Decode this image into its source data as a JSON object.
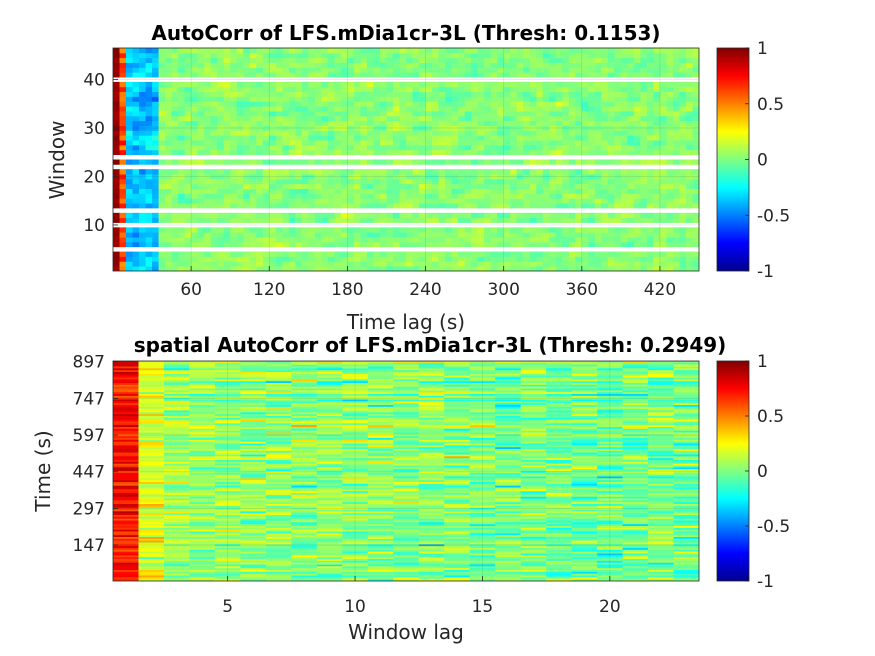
{
  "chart_data": [
    {
      "type": "heatmap",
      "title": "AutoCorr of LFS.mDia1cr-3L (Thresh: 0.1153)",
      "xlabel": "Time lag (s)",
      "ylabel": "Window",
      "xlim": [
        0,
        450
      ],
      "ylim": [
        0.5,
        46.5
      ],
      "xticks": [
        60,
        120,
        180,
        240,
        300,
        360,
        420
      ],
      "yticks": [
        10,
        20,
        30,
        40
      ],
      "missing_rows": [
        5,
        10,
        13,
        22,
        24,
        40
      ],
      "colorbar": {
        "colormap": "jet",
        "clim": [
          -1,
          1
        ],
        "ticks": [
          -1,
          -0.5,
          0,
          0.5,
          1
        ],
        "tick_labels": [
          "-1",
          "-0.5",
          "0",
          "0.5",
          "1"
        ]
      },
      "grid": true
    },
    {
      "type": "heatmap",
      "title": "spatial AutoCorr of LFS.mDia1cr-3L (Thresh: 0.2949)",
      "xlabel": "Window lag",
      "ylabel": "Time (s)",
      "xlim": [
        0.5,
        23.5
      ],
      "ylim": [
        0,
        900
      ],
      "xticks": [
        5,
        10,
        15,
        20
      ],
      "yticks": [
        147,
        297,
        447,
        597,
        747,
        897
      ],
      "colorbar": {
        "colormap": "jet",
        "clim": [
          -1,
          1
        ],
        "ticks": [
          -1,
          -0.5,
          0,
          0.5,
          1
        ],
        "tick_labels": [
          "-1",
          "-0.5",
          "0",
          "0.5",
          "1"
        ]
      },
      "grid": true
    }
  ]
}
